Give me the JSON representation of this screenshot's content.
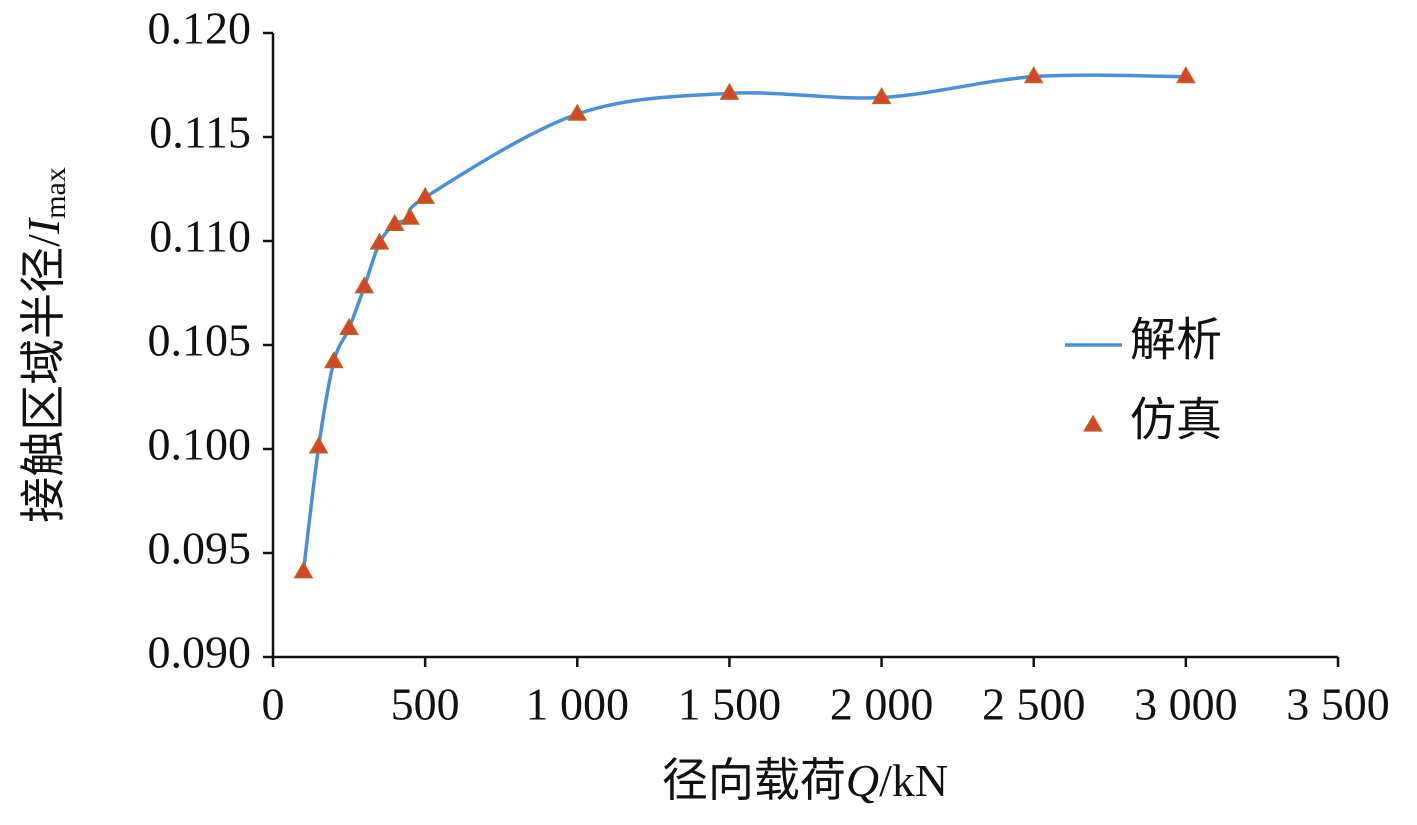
{
  "chart_data": {
    "type": "line",
    "x_label": [
      "径向载荷",
      "Q",
      "/kN"
    ],
    "y_label": [
      "接触区域半径/",
      "I",
      "max"
    ],
    "x": [
      100,
      150,
      200,
      250,
      300,
      350,
      400,
      450,
      500,
      1000,
      1500,
      2000,
      2500,
      3000
    ],
    "series": [
      {
        "name": "解析",
        "color": "#4a8fdc",
        "marker": "none",
        "values": [
          0.0941,
          0.1001,
          0.1042,
          0.1058,
          0.1078,
          0.1099,
          0.1108,
          0.1111,
          0.1121,
          0.1161,
          0.1171,
          0.1169,
          0.1179,
          0.1179
        ]
      },
      {
        "name": "仿真",
        "color": "#d9432a",
        "marker": "triangle",
        "values": [
          0.0941,
          0.1001,
          0.1042,
          0.1058,
          0.1078,
          0.1099,
          0.1108,
          0.1111,
          0.1121,
          0.1161,
          0.1171,
          0.1169,
          0.1179,
          0.1179
        ]
      }
    ],
    "xlim": [
      0,
      3500
    ],
    "xticks": [
      0,
      500,
      {
        "value": 1000,
        "label": "1 000"
      },
      {
        "value": 1500,
        "label": "1 500"
      },
      {
        "value": 2000,
        "label": "2 000"
      },
      {
        "value": 2500,
        "label": "2 500"
      },
      {
        "value": 3000,
        "label": "3 000"
      },
      {
        "value": 3500,
        "label": "3 500"
      }
    ],
    "ylim": [
      0.09,
      0.12
    ],
    "yticks": [
      {
        "value": 0.09,
        "label": "0.090"
      },
      0.095,
      {
        "value": 0.1,
        "label": "0.100"
      },
      0.105,
      {
        "value": 0.11,
        "label": "0.110"
      },
      0.115,
      {
        "value": 0.12,
        "label": "0.120"
      }
    ],
    "grid": false,
    "legend": "right"
  }
}
